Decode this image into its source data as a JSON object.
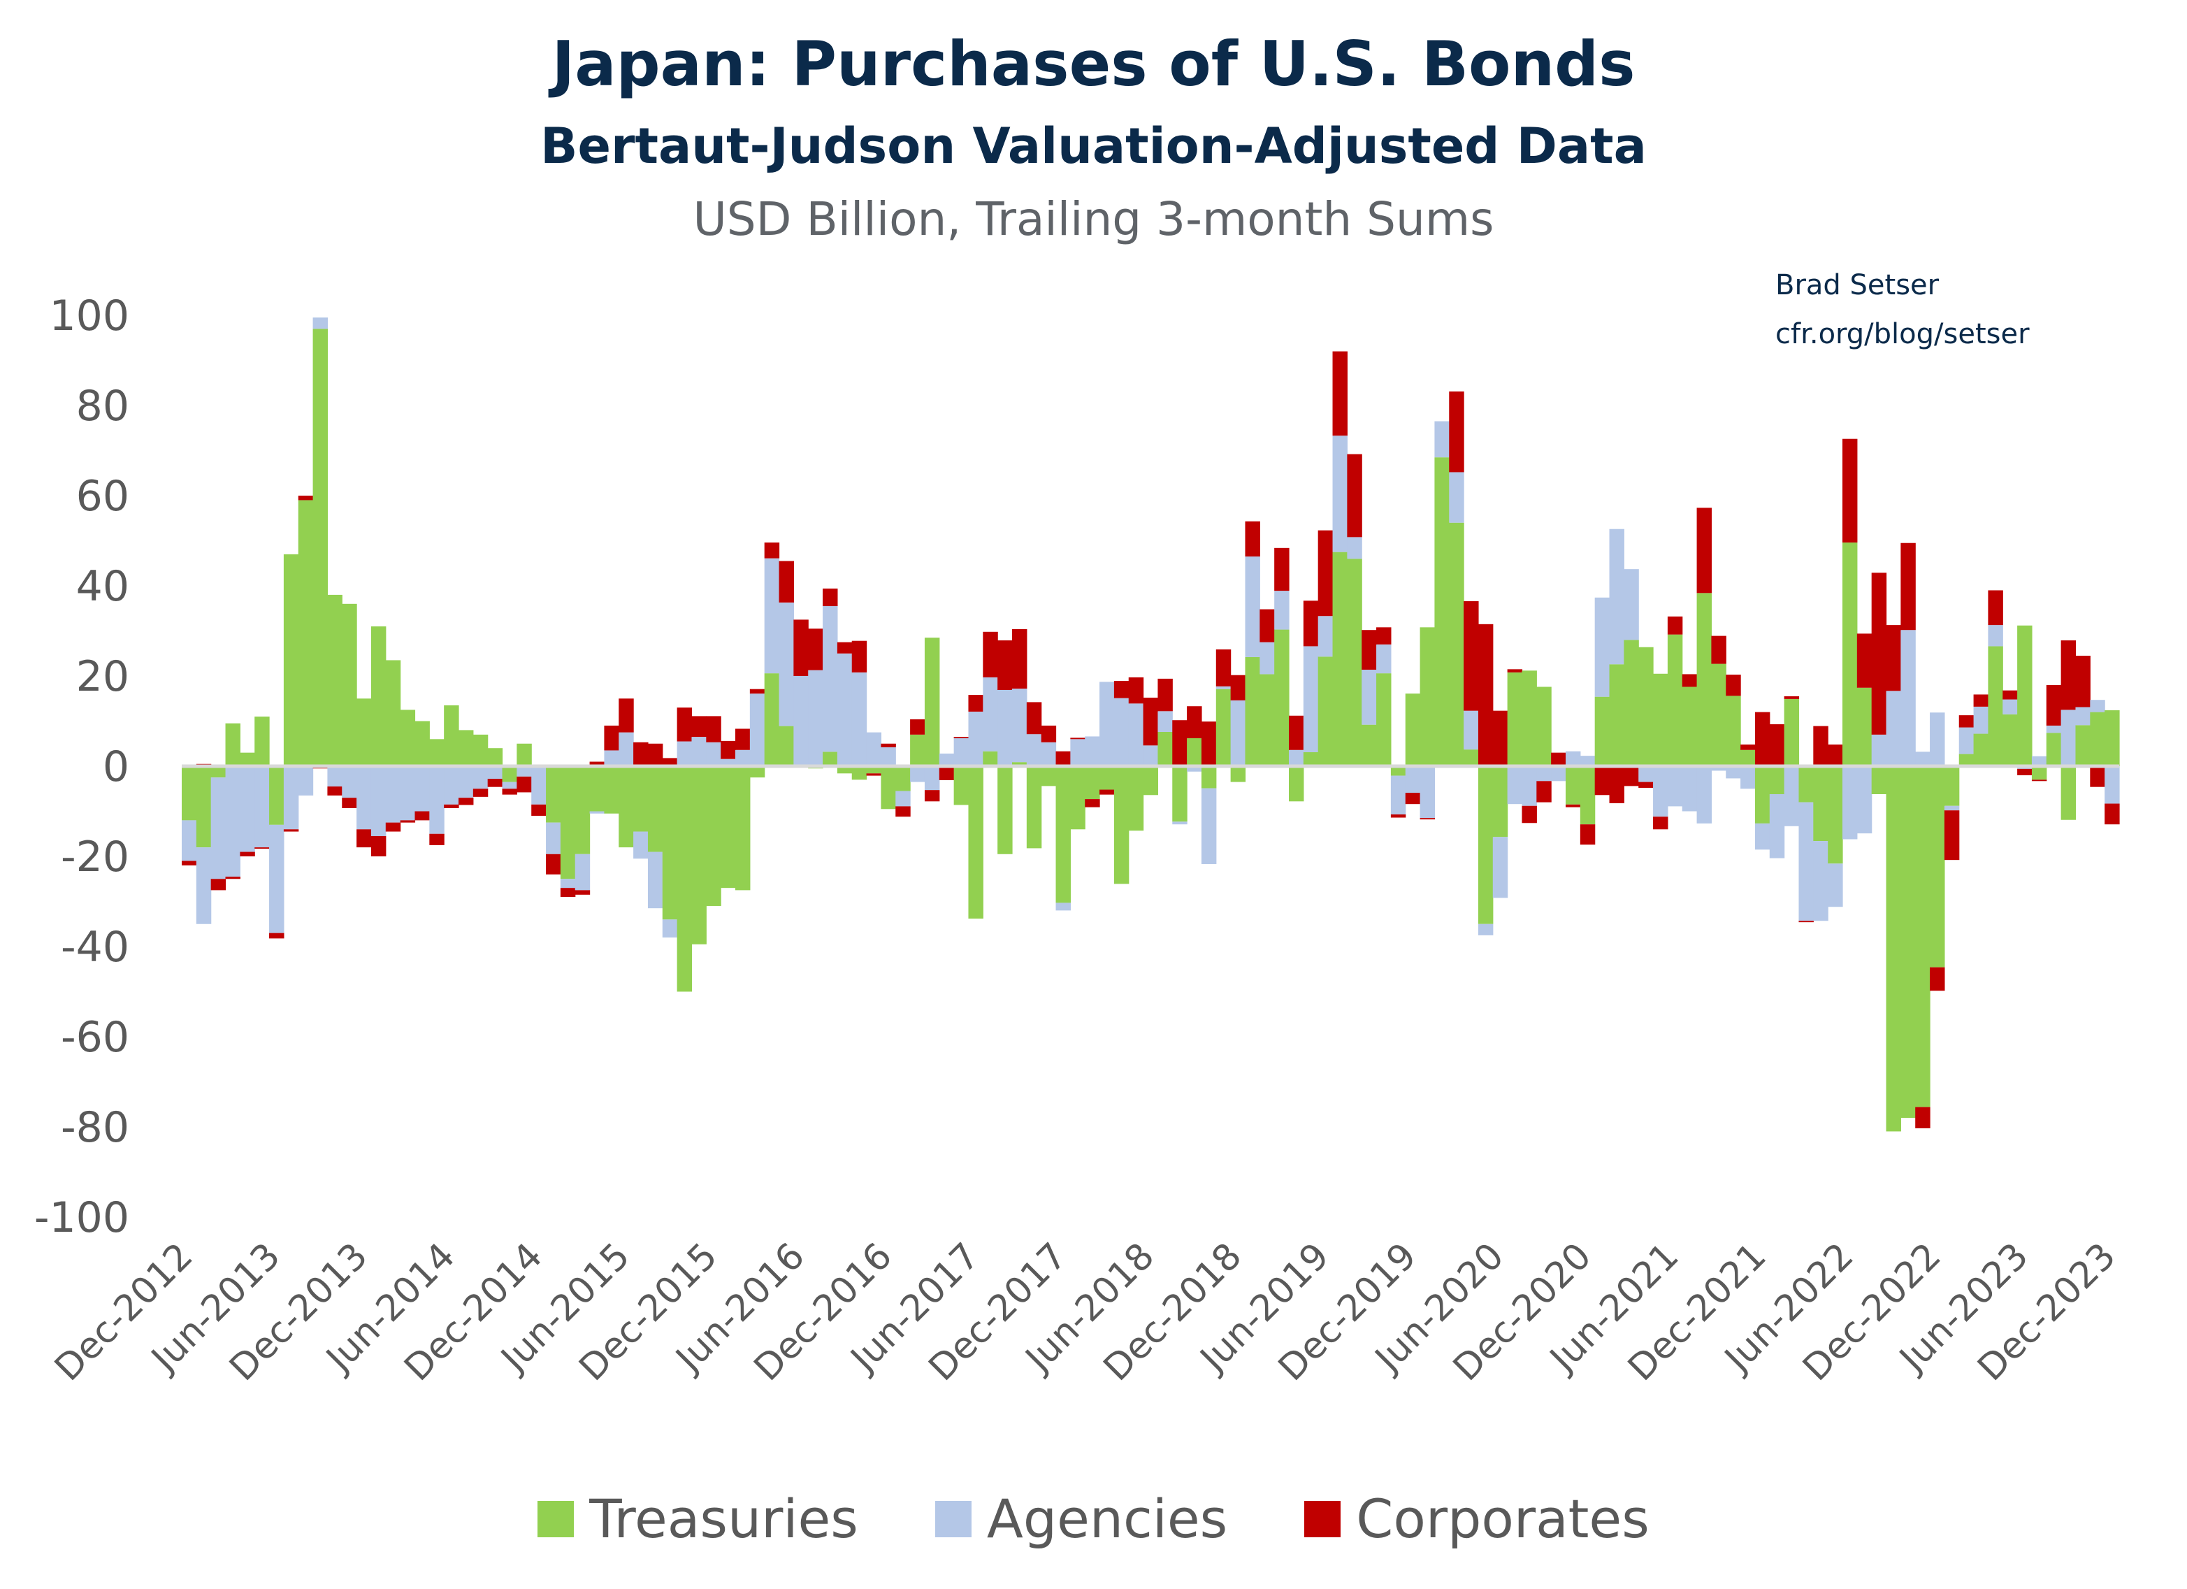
{
  "title": "Japan: Purchases of U.S. Bonds",
  "subtitle": "Bertaut-Judson Valuation-Adjusted Data",
  "units": "USD Billion, Trailing 3-month Sums",
  "credit": {
    "author": "Brad Setser",
    "site": "cfr.org/blog/setser"
  },
  "colors": {
    "Treasuries": "#92D050",
    "Agencies": "#B4C7E7",
    "Corporates": "#C00000",
    "title": "#0b2a4a",
    "axis_text": "#595959"
  },
  "chart_data": {
    "type": "bar",
    "stacked": true,
    "title": "Japan: Purchases of U.S. Bonds",
    "subtitle": "Bertaut-Judson Valuation-Adjusted Data",
    "ylabel": "",
    "xlabel": "",
    "ylim": [
      -100,
      100
    ],
    "y_ticks": [
      100,
      80,
      60,
      40,
      20,
      0,
      -20,
      -40,
      -60,
      -80,
      -100
    ],
    "x_range": [
      "Dec-2012",
      "Dec-2023"
    ],
    "x_frequency": "monthly",
    "x_tick_labels": [
      "Dec-2012",
      "Jun-2013",
      "Dec-2013",
      "Jun-2014",
      "Dec-2014",
      "Jun-2015",
      "Dec-2015",
      "Jun-2016",
      "Dec-2016",
      "Jun-2017",
      "Dec-2017",
      "Jun-2018",
      "Dec-2018",
      "Jun-2019",
      "Dec-2019",
      "Jun-2020",
      "Dec-2020",
      "Jun-2021",
      "Dec-2021",
      "Jun-2022",
      "Dec-2022",
      "Jun-2023",
      "Dec-2023"
    ],
    "grid": false,
    "legend_position": "bottom",
    "series": [
      {
        "name": "Treasuries",
        "values": [
          -12,
          -18,
          -2.5,
          9.5,
          3,
          11,
          -13,
          47,
          59,
          97,
          38,
          36,
          15,
          31,
          23.5,
          12.5,
          10,
          6,
          13.5,
          8,
          7,
          4,
          -3.5,
          5,
          0,
          -12.5,
          -25,
          -19.5,
          -10,
          -10.5,
          -18,
          -14.5,
          -19,
          -34,
          -50,
          -39.5,
          -31,
          -27,
          -27.5,
          -2.5,
          20.6,
          8.9,
          0,
          -0.5,
          3.2,
          -1.6,
          -3,
          -1.6,
          -9.5,
          -5.5,
          7,
          28.5,
          0,
          -8.6,
          -33.8,
          3.3,
          -19.5,
          0.9,
          -18.2,
          -4.4,
          -30.3,
          -14,
          -7.3,
          -5.2,
          -26.1,
          -14.3,
          -6.4,
          7.6,
          -12.3,
          6.2,
          -4.9,
          17.1,
          -3.5,
          24.2,
          20.4,
          30.3,
          -7.8,
          3.1,
          24.3,
          47.5,
          46,
          9.2,
          20.6,
          -2.1,
          16.1,
          30.8,
          68.5,
          54,
          3.7,
          -35,
          -15.7,
          20.8,
          21.2,
          17.6,
          0,
          -8.5,
          -12.9,
          15.4,
          22.6,
          28,
          26.4,
          20.5,
          29.2,
          17.6,
          38.4,
          22.7,
          15.6,
          3.6,
          -12.7,
          -6.2,
          14.9,
          -8,
          -16.6,
          -21.6,
          49.6,
          17.4,
          -6.2,
          -81,
          -78,
          -75.6,
          -44.6,
          -8.8,
          2.7,
          7.2,
          26.6,
          11.5,
          31.2,
          -3,
          7.4,
          -11.9,
          9.1,
          12,
          12.4
        ]
      },
      {
        "name": "Agencies",
        "values": [
          -9,
          -17,
          -22.5,
          -24.5,
          -19,
          -18,
          -24,
          -14,
          -6.5,
          2.5,
          -4.5,
          -7,
          -14,
          -15.5,
          -12.5,
          -12,
          -10,
          -15,
          -8.5,
          -7,
          -5,
          -2.8,
          -1.5,
          -2.3,
          -8.5,
          -7,
          -2,
          -8,
          -0.5,
          3.5,
          7.5,
          -6,
          -12.5,
          -4,
          5.5,
          6.5,
          5.3,
          1.6,
          3.6,
          16.1,
          25.5,
          27.4,
          20,
          21.3,
          32.3,
          25,
          20.8,
          7.5,
          4.2,
          -3.4,
          -3.5,
          -5.3,
          2.8,
          6.2,
          12.1,
          16.4,
          16.9,
          16.3,
          7.1,
          5.3,
          -1.7,
          6,
          6.6,
          18.7,
          15.1,
          13.9,
          4.6,
          4.6,
          -0.6,
          -1.2,
          -16.8,
          0.6,
          14.6,
          22.3,
          7.1,
          8.6,
          3.6,
          23.5,
          9,
          25.8,
          4.8,
          12.2,
          6.4,
          -8.6,
          -5.9,
          -11.5,
          8,
          11.2,
          8.6,
          -2.5,
          -13.5,
          -8.4,
          -8.8,
          -3.3,
          -3.3,
          3.3,
          2.3,
          22,
          30,
          15.7,
          -3.5,
          -11.2,
          -8.9,
          -10,
          -12.7,
          -1,
          -2.7,
          -5,
          -5.8,
          -14.2,
          -13.3,
          -26.3,
          -17.7,
          -9.6,
          -16.2,
          -14.9,
          7,
          16.7,
          30.2,
          3.2,
          11.9,
          -1,
          5.9,
          6,
          4.7,
          3.3,
          -0.6,
          2.2,
          1.6,
          12.5,
          4,
          2.7,
          -8.3
        ]
      },
      {
        "name": "Corporates",
        "values": [
          -1,
          0.5,
          -2.5,
          -0.5,
          -1,
          -0.3,
          -1.2,
          -0.5,
          1,
          -0.5,
          -2,
          -2.3,
          -4,
          -4.5,
          -2,
          -0.5,
          -2,
          -2.5,
          -0.8,
          -1.6,
          -1.8,
          -1.8,
          -1.3,
          -3.5,
          -2.5,
          -4.5,
          -2,
          -1,
          1,
          5.5,
          7.5,
          5.3,
          5,
          1.8,
          7.5,
          4.6,
          5.8,
          4,
          4.7,
          1,
          3.5,
          9.2,
          12.5,
          9.2,
          3.9,
          2.5,
          7,
          -0.5,
          0.8,
          -2.3,
          3.4,
          -2.5,
          -3.1,
          0.3,
          3.7,
          10.1,
          11,
          13.2,
          7.1,
          3.7,
          3.3,
          0.3,
          -1.8,
          -1.1,
          3.8,
          5.8,
          10.6,
          7.2,
          10.2,
          7.1,
          9.9,
          8.2,
          5.6,
          7.8,
          7.3,
          9.5,
          7.6,
          10.1,
          19,
          18.7,
          18.4,
          8.8,
          3.8,
          -0.7,
          -2.5,
          -0.3,
          0,
          17.9,
          24.3,
          31.5,
          12.3,
          0.7,
          -3.8,
          -4.7,
          3,
          -0.6,
          -4.5,
          -6.4,
          -8.2,
          -4.4,
          -1.3,
          -2.8,
          4,
          2.8,
          18.9,
          6.2,
          4.7,
          1.2,
          12,
          9.3,
          0.6,
          -0.3,
          8.9,
          4.8,
          23,
          12,
          35.9,
          14.6,
          19.3,
          -4.7,
          -5.2,
          -11,
          2.7,
          2.7,
          7.7,
          2,
          -1.4,
          -0.3,
          9,
          15.4,
          11.4,
          -4.6,
          -4.6
        ]
      }
    ]
  }
}
